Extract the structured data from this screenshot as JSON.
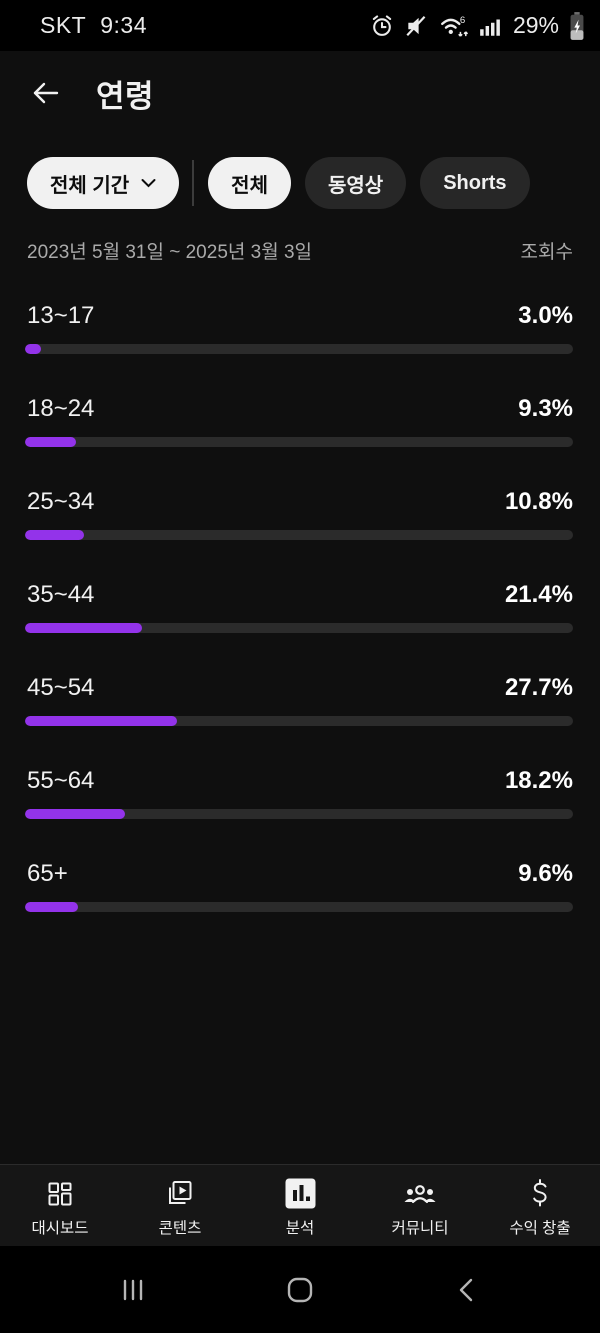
{
  "status_bar": {
    "carrier": "SKT",
    "time": "9:34",
    "battery_percent": "29%"
  },
  "header": {
    "title": "연령"
  },
  "filters": {
    "period_chip": "전체 기간",
    "content_tabs": [
      {
        "label": "전체",
        "selected": true
      },
      {
        "label": "동영상",
        "selected": false
      },
      {
        "label": "Shorts",
        "selected": false
      }
    ]
  },
  "report": {
    "date_range": "2023년 5월 31일 ~ 2025년 3월 3일",
    "metric_label": "조회수"
  },
  "chart_data": {
    "type": "bar",
    "orientation": "horizontal",
    "title": "연령",
    "metric": "조회수",
    "date_range": "2023년 5월 31일 ~ 2025년 3월 3일",
    "categories": [
      "13~17",
      "18~24",
      "25~34",
      "35~44",
      "45~54",
      "55~64",
      "65+"
    ],
    "values": [
      3.0,
      9.3,
      10.8,
      21.4,
      27.7,
      18.2,
      9.6
    ],
    "value_labels": [
      "3.0%",
      "9.3%",
      "10.8%",
      "21.4%",
      "27.7%",
      "18.2%",
      "9.6%"
    ],
    "xlim": [
      0,
      100
    ],
    "bar_color": "#9333ea",
    "track_color": "#2b2b2b",
    "grid": false,
    "legend": false
  },
  "bottom_nav": {
    "items": [
      {
        "label": "대시보드",
        "icon": "dashboard-icon",
        "active": false
      },
      {
        "label": "콘텐츠",
        "icon": "content-icon",
        "active": false
      },
      {
        "label": "분석",
        "icon": "analytics-icon",
        "active": true
      },
      {
        "label": "커뮤니티",
        "icon": "community-icon",
        "active": false
      },
      {
        "label": "수익 창출",
        "icon": "monetization-icon",
        "active": false
      }
    ]
  },
  "colors": {
    "accent": "#9333ea",
    "background": "#0f0f0f",
    "nav_background": "#161616",
    "chip_selected_bg": "#f1f1f1",
    "chip_bg": "#272727",
    "track": "#2b2b2b",
    "muted_text": "#aaaaaa",
    "text": "#f1f1f1"
  }
}
